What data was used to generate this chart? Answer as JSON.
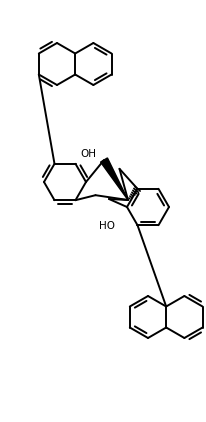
{
  "background": "#ffffff",
  "line_color": "#000000",
  "lw": 1.4,
  "figsize": [
    2.06,
    4.22
  ],
  "dpi": 100
}
